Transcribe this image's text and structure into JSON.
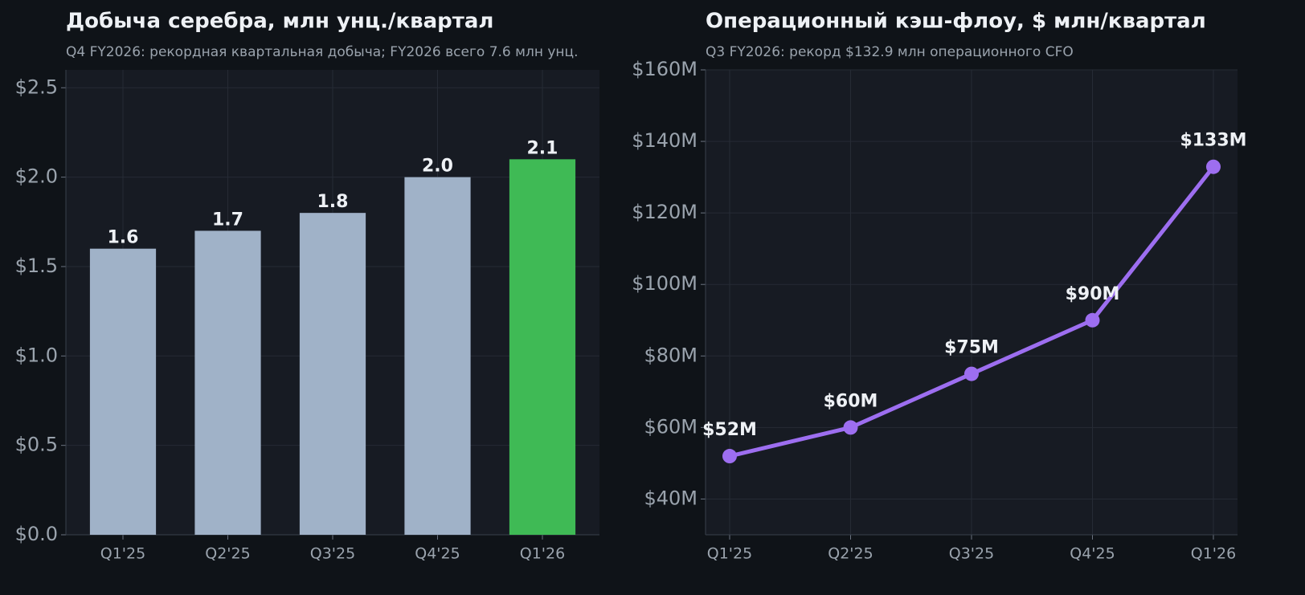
{
  "chart_data": [
    {
      "type": "bar",
      "title": "Добыча серебра, млн унц./квартал",
      "subtitle": "Q4 FY2026: рекордная квартальная добыча; FY2026 всего 7.6 млн унц.",
      "categories": [
        "Q1'25",
        "Q2'25",
        "Q3'25",
        "Q4'25",
        "Q1'26"
      ],
      "values": [
        1.6,
        1.7,
        1.8,
        2.0,
        2.1
      ],
      "value_labels": [
        "1.6",
        "1.7",
        "1.8",
        "2.0",
        "2.1"
      ],
      "colors": [
        "#a0b2c8",
        "#a0b2c8",
        "#a0b2c8",
        "#a0b2c8",
        "#3fba55"
      ],
      "ylim": [
        0,
        2.6
      ],
      "yticks": [
        {
          "value": 0,
          "label": "$0.0"
        },
        {
          "value": 0.5,
          "label": "$0.5"
        },
        {
          "value": 1,
          "label": "$1.0"
        },
        {
          "value": 1.5,
          "label": "$1.5"
        },
        {
          "value": 2,
          "label": "$2.0"
        },
        {
          "value": 2.5,
          "label": "$2.5"
        }
      ],
      "grid": true
    },
    {
      "type": "line",
      "title": "Операционный кэш-флоу, $ млн/квартал",
      "subtitle": "Q3 FY2026: рекорд $132.9 млн операционного CFO",
      "categories": [
        "Q1'25",
        "Q2'25",
        "Q3'25",
        "Q4'25",
        "Q1'26"
      ],
      "values": [
        52,
        60,
        75,
        90,
        132.9
      ],
      "value_labels": [
        "$52M",
        "$60M",
        "$75M",
        "$90M",
        "$133M"
      ],
      "color": "#9d6ef0",
      "ylim": [
        30,
        160
      ],
      "yticks": [
        {
          "value": 40,
          "label": "$40M"
        },
        {
          "value": 60,
          "label": "$60M"
        },
        {
          "value": 80,
          "label": "$80M"
        },
        {
          "value": 100,
          "label": "$100M"
        },
        {
          "value": 120,
          "label": "$120M"
        },
        {
          "value": 140,
          "label": "$140M"
        },
        {
          "value": 160,
          "label": "$160M"
        }
      ],
      "grid": true
    }
  ]
}
